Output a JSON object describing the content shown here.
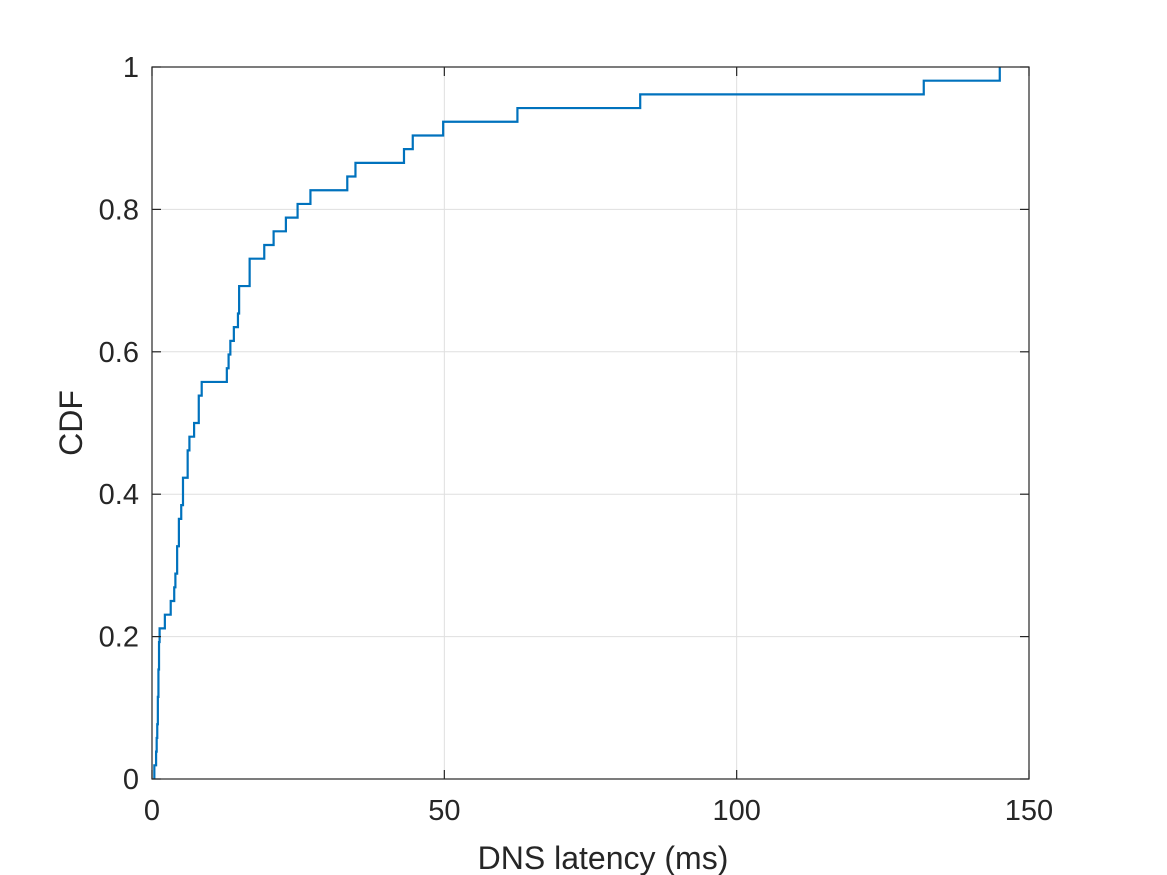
{
  "chart_data": {
    "type": "line",
    "subtype": "empirical-cdf-stairs",
    "title": "",
    "xlabel": "DNS latency (ms)",
    "ylabel": "CDF",
    "xlim": [
      0,
      150
    ],
    "ylim": [
      0,
      1
    ],
    "xticks": [
      0,
      50,
      100,
      150
    ],
    "xtick_labels": [
      "0",
      "50",
      "100",
      "150"
    ],
    "yticks": [
      0,
      0.2,
      0.4,
      0.6,
      0.8,
      1
    ],
    "ytick_labels": [
      "0",
      "0.2",
      "0.4",
      "0.6",
      "0.8",
      "1"
    ],
    "grid": true,
    "legend": "none",
    "series": [
      {
        "color": "#0072bd",
        "x": [
          0.4,
          0.7,
          0.8,
          0.9,
          1.0,
          1.1,
          1.2,
          1.3,
          2.2,
          3.2,
          3.8,
          4.0,
          4.3,
          4.6,
          5.0,
          5.3,
          6.1,
          6.4,
          7.2,
          8.0,
          8.5,
          12.8,
          13.1,
          13.4,
          14.0,
          14.7,
          14.9,
          16.7,
          19.2,
          20.8,
          22.9,
          24.9,
          27.1,
          33.4,
          34.8,
          43.1,
          44.6,
          49.8,
          62.5,
          83.5,
          132.0,
          145.0
        ],
        "y": [
          0.0192,
          0.0385,
          0.0577,
          0.0769,
          0.1154,
          0.1538,
          0.1923,
          0.2115,
          0.2308,
          0.25,
          0.2692,
          0.2885,
          0.3269,
          0.3654,
          0.3846,
          0.4231,
          0.4615,
          0.4808,
          0.5,
          0.5385,
          0.5577,
          0.5769,
          0.5962,
          0.6154,
          0.6346,
          0.6538,
          0.6923,
          0.7308,
          0.75,
          0.7692,
          0.7885,
          0.8077,
          0.8269,
          0.8462,
          0.8654,
          0.8846,
          0.9038,
          0.9231,
          0.9423,
          0.9615,
          0.9808,
          1.0
        ]
      }
    ]
  }
}
